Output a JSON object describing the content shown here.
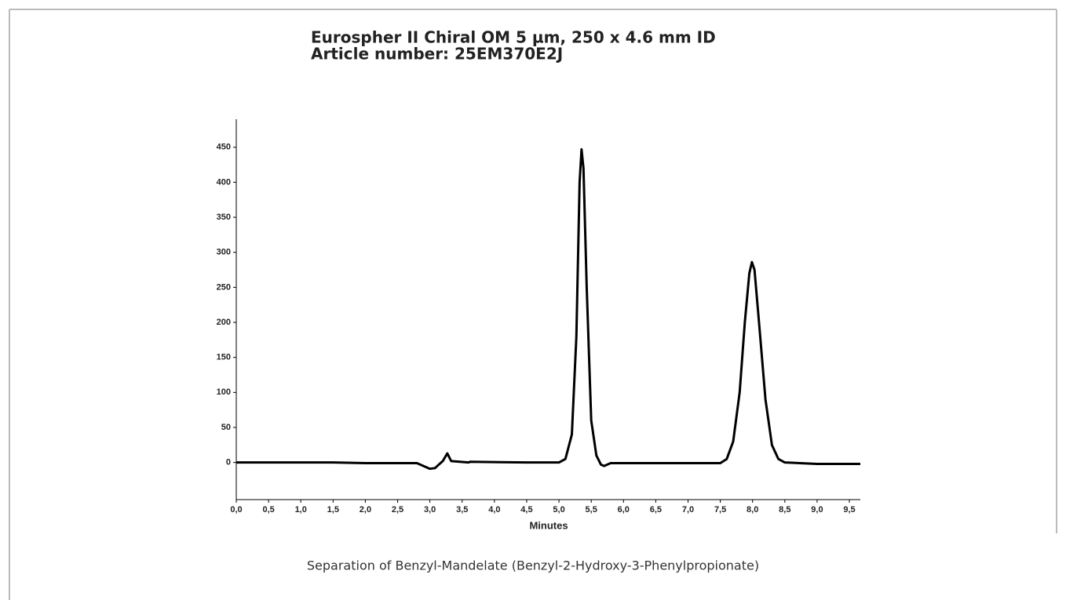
{
  "chart_data": {
    "type": "line",
    "title": "Eurospher II Chiral OM 5 µm, 250 x 4.6 mm ID",
    "subtitle": "Article number: 25EM370E2J",
    "x_label": "Minutes",
    "caption": "Separation of Benzyl-Mandelate (Benzyl-2-Hydroxy-3-Phenylpropionate)",
    "xlim": [
      0,
      9.67
    ],
    "ylim": [
      -53,
      490
    ],
    "xticks": [
      {
        "value": 0,
        "label": "0,0"
      },
      {
        "value": 0.5,
        "label": "0,5"
      },
      {
        "value": 1,
        "label": "1,0"
      },
      {
        "value": 1.5,
        "label": "1,5"
      },
      {
        "value": 2,
        "label": "2,0"
      },
      {
        "value": 2.5,
        "label": "2,5"
      },
      {
        "value": 3,
        "label": "3,0"
      },
      {
        "value": 3.5,
        "label": "3,5"
      },
      {
        "value": 4,
        "label": "4,0"
      },
      {
        "value": 4.5,
        "label": "4,5"
      },
      {
        "value": 5,
        "label": "5,0"
      },
      {
        "value": 5.5,
        "label": "5,5"
      },
      {
        "value": 6,
        "label": "6,0"
      },
      {
        "value": 6.5,
        "label": "6,5"
      },
      {
        "value": 7,
        "label": "7,0"
      },
      {
        "value": 7.5,
        "label": "7,5"
      },
      {
        "value": 8,
        "label": "8,0"
      },
      {
        "value": 8.5,
        "label": "8,5"
      },
      {
        "value": 9,
        "label": "9,0"
      },
      {
        "value": 9.5,
        "label": "9,5"
      }
    ],
    "yticks": [
      0,
      50,
      100,
      150,
      200,
      250,
      300,
      350,
      400,
      450
    ],
    "series": [
      {
        "color": "#000000",
        "x": [
          0,
          1.5,
          2.0,
          2.8,
          2.9,
          3.0,
          3.08,
          3.15,
          3.2,
          3.27,
          3.33,
          3.6,
          3.62,
          4.5,
          5.0,
          5.1,
          5.2,
          5.27,
          5.32,
          5.35,
          5.38,
          5.43,
          5.5,
          5.58,
          5.65,
          5.7,
          5.8,
          6.2,
          7.5,
          7.6,
          7.7,
          7.8,
          7.88,
          7.95,
          7.99,
          8.03,
          8.1,
          8.2,
          8.3,
          8.4,
          8.5,
          9.0,
          9.67
        ],
        "values": [
          0,
          0,
          -1,
          -1,
          -5,
          -9,
          -8,
          -2,
          2,
          13,
          2,
          0,
          1,
          0,
          0,
          5,
          40,
          180,
          400,
          447,
          420,
          250,
          60,
          10,
          -3,
          -5,
          -1,
          -1,
          -1,
          5,
          30,
          100,
          200,
          270,
          286,
          275,
          200,
          90,
          25,
          5,
          0,
          -2,
          -2
        ]
      }
    ]
  }
}
